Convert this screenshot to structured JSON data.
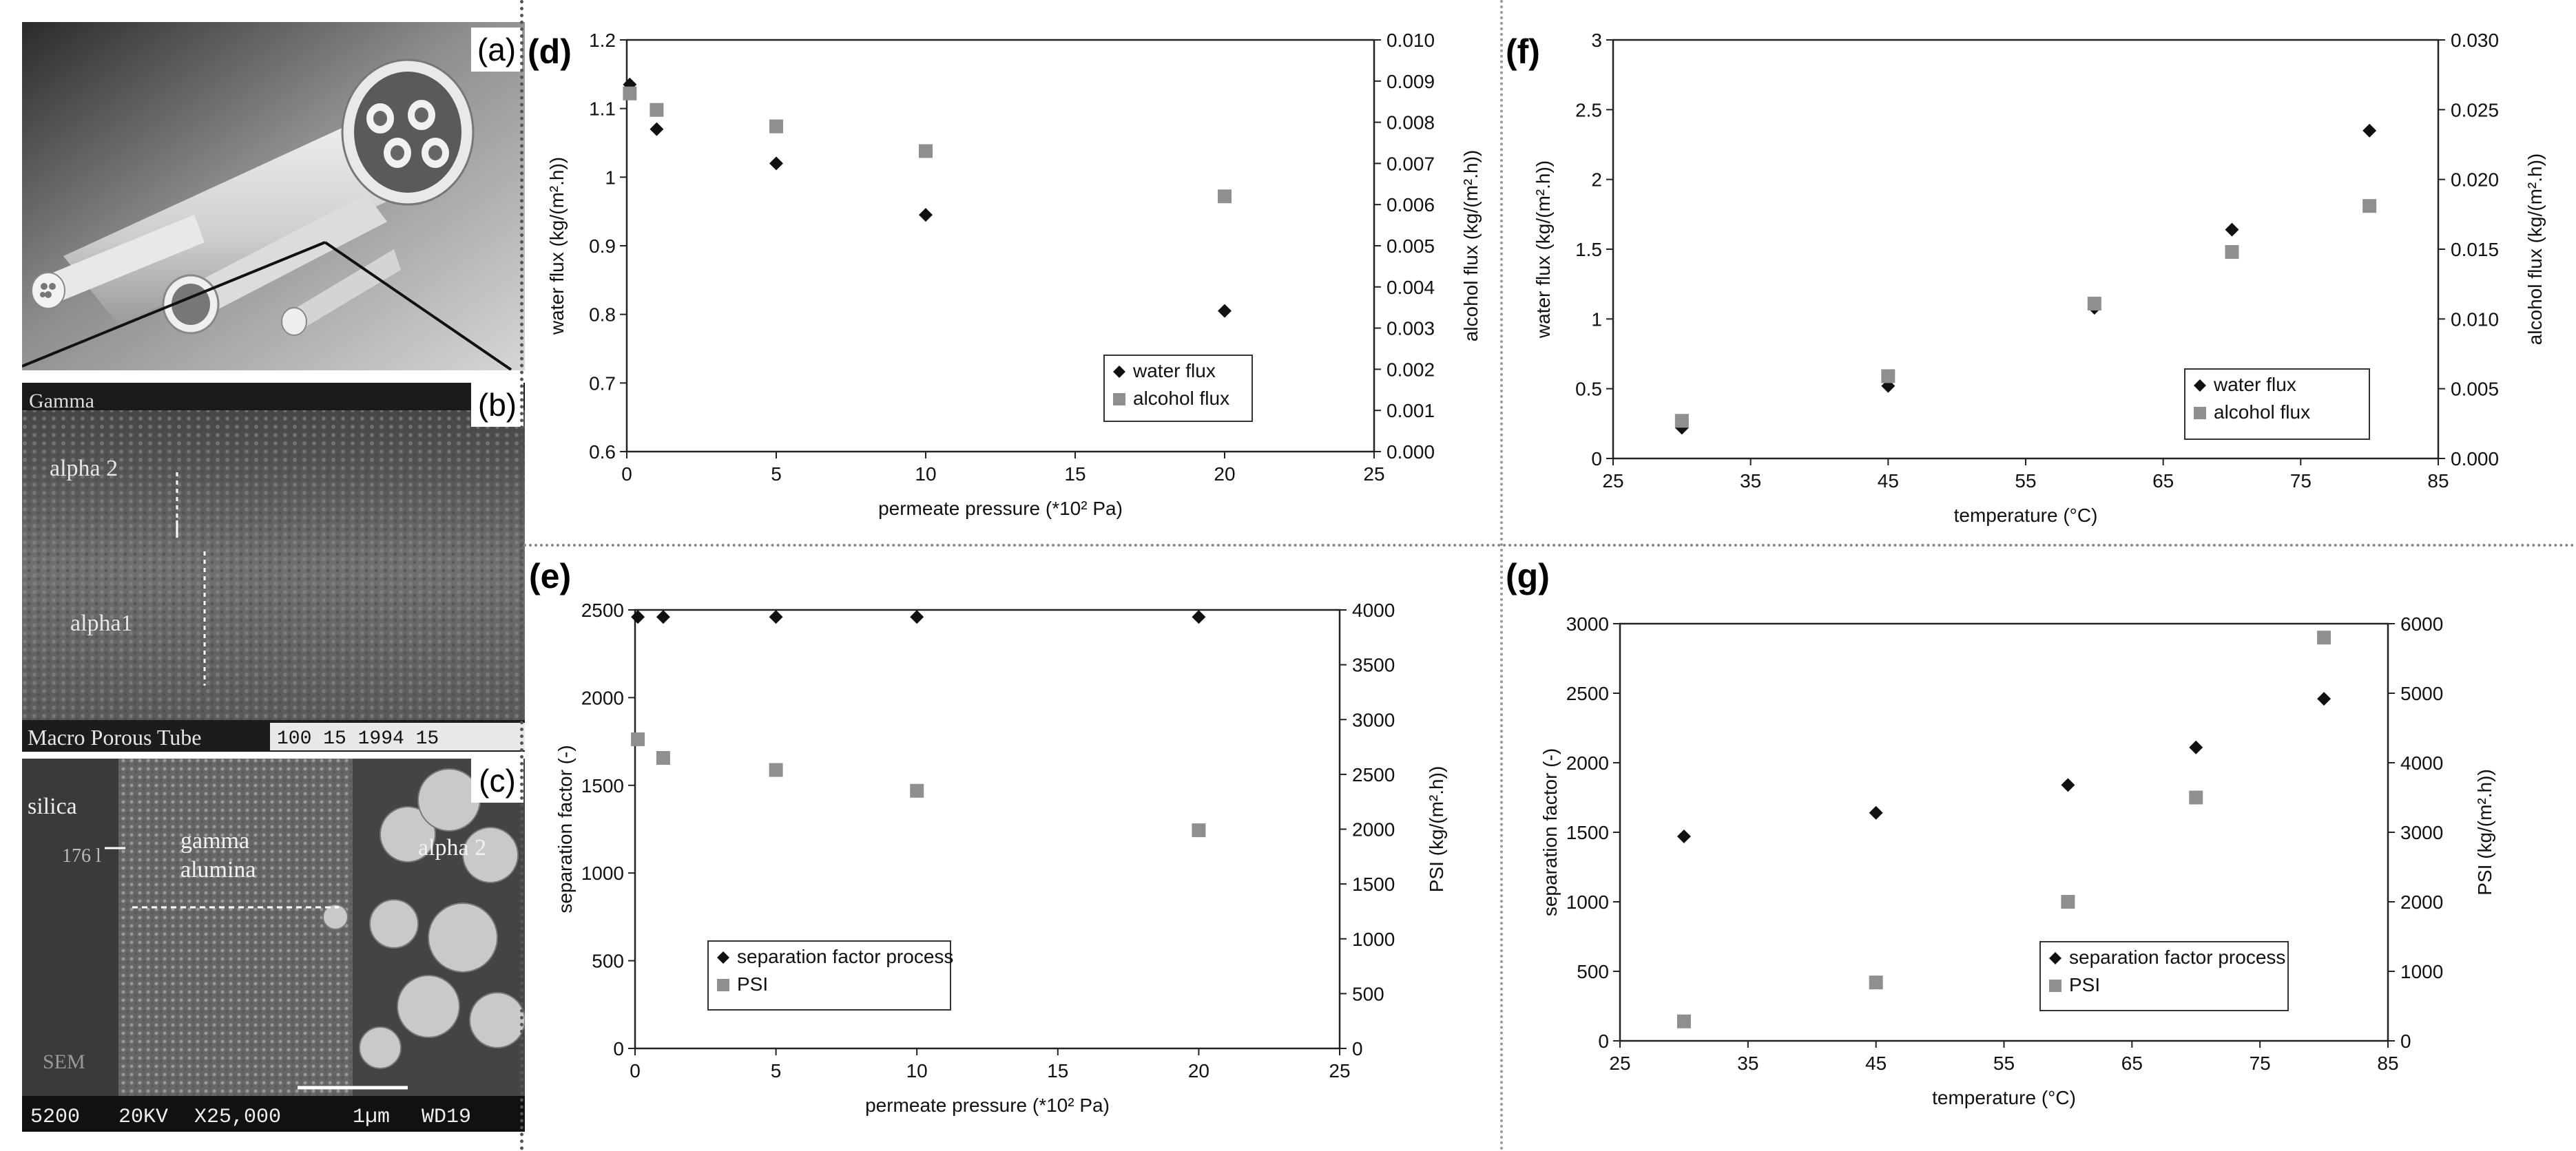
{
  "panels": {
    "a": {
      "label": "(a)"
    },
    "b": {
      "label": "(b)",
      "texts": [
        "Gamma",
        "alpha 2",
        "alpha1",
        "Macro Porous Tube"
      ],
      "scale_bar_text": "100   15   1994   15"
    },
    "c": {
      "label": "(c)",
      "texts": [
        "silica",
        "176 l",
        "gamma",
        "alumina",
        "alpha 2",
        "SEM"
      ],
      "footer": [
        "5200",
        "20KV",
        "X25,000",
        "1µm",
        "WD19"
      ]
    }
  },
  "colors": {
    "series_dark": "#111111",
    "series_light": "#8f8f8f",
    "axis": "#222222"
  },
  "chart_data": [
    {
      "id": "d",
      "panel_label": "(d)",
      "type": "scatter",
      "xlabel": "permeate pressure (*10² Pa)",
      "ylabel": "water flux (kg/(m².h))",
      "y2label": "alcohol flux (kg/(m².h))",
      "xlim": [
        0,
        25
      ],
      "xticks": [
        0,
        5,
        10,
        15,
        20,
        25
      ],
      "ylim": [
        0.6,
        1.2
      ],
      "yticks": [
        0.6,
        0.7,
        0.8,
        0.9,
        1,
        1.1,
        1.2
      ],
      "y2lim": [
        0,
        0.01
      ],
      "y2ticks": [
        "0.000",
        "0.001",
        "0.002",
        "0.003",
        "0.004",
        "0.005",
        "0.006",
        "0.007",
        "0.008",
        "0.009",
        "0.010"
      ],
      "legend": {
        "position": "bottom-right"
      },
      "series": [
        {
          "name": "water flux",
          "marker": "diamond",
          "axis": "left",
          "x": [
            0.1,
            1,
            5,
            10,
            20
          ],
          "y": [
            1.135,
            1.07,
            1.02,
            0.945,
            0.805
          ]
        },
        {
          "name": "alcohol flux",
          "marker": "square",
          "axis": "right",
          "x": [
            0.1,
            1,
            5,
            10,
            20
          ],
          "y": [
            0.0087,
            0.0083,
            0.0079,
            0.0073,
            0.0062
          ]
        }
      ]
    },
    {
      "id": "e",
      "panel_label": "(e)",
      "type": "scatter",
      "xlabel": "permeate pressure (*10² Pa)",
      "ylabel": "separation factor (-)",
      "y2label": "PSI (kg/(m².h))",
      "xlim": [
        0,
        25
      ],
      "xticks": [
        0,
        5,
        10,
        15,
        20,
        25
      ],
      "ylim": [
        0,
        2500
      ],
      "yticks": [
        0,
        500,
        1000,
        1500,
        2000,
        2500
      ],
      "y2lim": [
        0,
        4000
      ],
      "y2ticks": [
        "0",
        "500",
        "1000",
        "1500",
        "2000",
        "2500",
        "3000",
        "3500",
        "4000"
      ],
      "legend": {
        "position": "bottom-left"
      },
      "series": [
        {
          "name": "separation factor process",
          "marker": "diamond",
          "axis": "left",
          "x": [
            0.1,
            1,
            5,
            10,
            20
          ],
          "y": [
            2460,
            2460,
            2460,
            2460,
            2460
          ]
        },
        {
          "name": "PSI",
          "marker": "square",
          "axis": "right",
          "x": [
            0.1,
            1,
            5,
            10,
            20
          ],
          "y": [
            2820,
            2650,
            2540,
            2350,
            1990
          ]
        }
      ]
    },
    {
      "id": "f",
      "panel_label": "(f)",
      "type": "scatter",
      "xlabel": "temperature (°C)",
      "ylabel": "water flux (kg/(m².h))",
      "y2label": "alcohol flux (kg/(m².h))",
      "xlim": [
        25,
        85
      ],
      "xticks": [
        25,
        35,
        45,
        55,
        65,
        75,
        85
      ],
      "ylim": [
        0,
        3
      ],
      "yticks": [
        0,
        0.5,
        1,
        1.5,
        2,
        2.5,
        3
      ],
      "y2lim": [
        0,
        0.03
      ],
      "y2ticks": [
        "0.000",
        "0.005",
        "0.010",
        "0.015",
        "0.020",
        "0.025",
        "0.030"
      ],
      "legend": {
        "position": "bottom-right"
      },
      "series": [
        {
          "name": "water flux",
          "marker": "diamond",
          "axis": "left",
          "x": [
            30,
            45,
            60,
            70,
            80
          ],
          "y": [
            0.22,
            0.52,
            1.08,
            1.64,
            2.35
          ]
        },
        {
          "name": "alcohol flux",
          "marker": "square",
          "axis": "right",
          "x": [
            30,
            45,
            60,
            70,
            80
          ],
          "y": [
            0.0027,
            0.0059,
            0.0111,
            0.0148,
            0.0181
          ]
        }
      ]
    },
    {
      "id": "g",
      "panel_label": "(g)",
      "type": "scatter",
      "xlabel": "temperature (°C)",
      "ylabel": "separation factor (-)",
      "y2label": "PSI (kg/(m².h))",
      "xlim": [
        25,
        85
      ],
      "xticks": [
        25,
        35,
        45,
        55,
        65,
        75,
        85
      ],
      "ylim": [
        0,
        3000
      ],
      "yticks": [
        0,
        500,
        1000,
        1500,
        2000,
        2500,
        3000
      ],
      "y2lim": [
        0,
        6000
      ],
      "y2ticks": [
        "0",
        "1000",
        "2000",
        "3000",
        "4000",
        "5000",
        "6000"
      ],
      "legend": {
        "position": "bottom-right"
      },
      "series": [
        {
          "name": "separation factor process",
          "marker": "diamond",
          "axis": "left",
          "x": [
            30,
            45,
            60,
            70,
            80
          ],
          "y": [
            1470,
            1640,
            1840,
            2110,
            2460
          ]
        },
        {
          "name": "PSI",
          "marker": "square",
          "axis": "right",
          "x": [
            30,
            45,
            60,
            70,
            80
          ],
          "y": [
            280,
            840,
            2000,
            3500,
            5800
          ]
        }
      ]
    }
  ]
}
